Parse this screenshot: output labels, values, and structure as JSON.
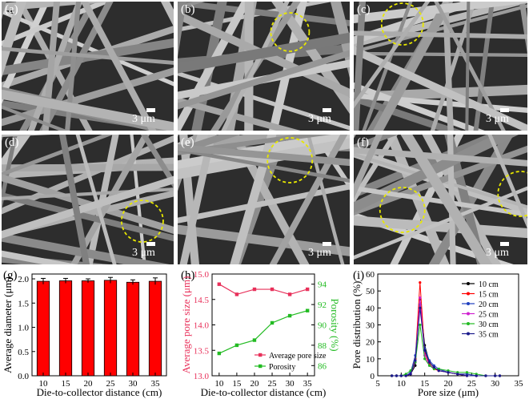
{
  "micrographs": [
    {
      "label": "(a)",
      "scale": "3 μm",
      "circles": 0
    },
    {
      "label": "(b)",
      "scale": "3 μm",
      "circles": 1
    },
    {
      "label": "(c)",
      "scale": "3 μm",
      "circles": 1
    },
    {
      "label": "(d)",
      "scale": "3 μm",
      "circles": 1
    },
    {
      "label": "(e)",
      "scale": "3 μm",
      "circles": 1
    },
    {
      "label": "(f)",
      "scale": "3 μm",
      "circles": 2
    }
  ],
  "colors": {
    "bar": "#ff0000",
    "pore_line": "#e8305a",
    "porosity_line": "#22bb22",
    "circle": "#e8e800"
  },
  "chart_data": [
    {
      "type": "bar",
      "panel_label": "(g)",
      "categories": [
        "10",
        "15",
        "20",
        "25",
        "30",
        "35"
      ],
      "values": [
        1.95,
        1.96,
        1.96,
        1.97,
        1.93,
        1.95
      ],
      "errors": [
        0.06,
        0.05,
        0.04,
        0.06,
        0.05,
        0.07
      ],
      "xlabel": "Die-to-collector distance (cm)",
      "ylabel": "Average diameter (μm)",
      "ylim": [
        0.0,
        2.1
      ],
      "yticks": [
        "0.0",
        "0.5",
        "1.0",
        "1.5",
        "2.0"
      ]
    },
    {
      "type": "line",
      "panel_label": "(h)",
      "x": [
        10,
        15,
        20,
        25,
        30,
        35
      ],
      "xticks": [
        "10",
        "15",
        "20",
        "25",
        "30",
        "35"
      ],
      "series": [
        {
          "name": "Average pore size",
          "axis": "left",
          "values": [
            14.8,
            14.6,
            14.7,
            14.7,
            14.6,
            14.7
          ]
        },
        {
          "name": "Porosity",
          "axis": "right",
          "values": [
            87.2,
            88.0,
            88.5,
            90.2,
            90.9,
            91.4
          ]
        }
      ],
      "xlabel": "Die-to-collector distance (cm)",
      "ylabel_left": "Average pore size (μm)",
      "ylabel_right": "Porosity (%)",
      "ylim_left": [
        13.0,
        15.0
      ],
      "yticks_left": [
        "13.0",
        "13.5",
        "14.0",
        "14.5",
        "15.0"
      ],
      "ylim_right": [
        85,
        95
      ],
      "yticks_right": [
        "86",
        "88",
        "90",
        "92",
        "94"
      ],
      "legend": "bottom-right"
    },
    {
      "type": "line",
      "panel_label": "(i)",
      "x": [
        8,
        9,
        10,
        11,
        12,
        13,
        14,
        15,
        16,
        17,
        18,
        20,
        22,
        24,
        26,
        28,
        30,
        31
      ],
      "xticks": [
        "5",
        "10",
        "15",
        "20",
        "25",
        "30",
        "35"
      ],
      "series": [
        {
          "name": "10 cm",
          "color": "#000000",
          "values": [
            0,
            0,
            0,
            0,
            1,
            6,
            45,
            18,
            8,
            5,
            3,
            2,
            1,
            1,
            0,
            0,
            0,
            0
          ]
        },
        {
          "name": "15 cm",
          "color": "#ff0000",
          "values": [
            0,
            0,
            0,
            0,
            1,
            10,
            55,
            14,
            7,
            4,
            3,
            2,
            1,
            0,
            0,
            0,
            0,
            0
          ]
        },
        {
          "name": "20 cm",
          "color": "#1f3fbf",
          "values": [
            0,
            0,
            0,
            0,
            2,
            12,
            42,
            16,
            9,
            6,
            4,
            2,
            1,
            1,
            0,
            0,
            0,
            0
          ]
        },
        {
          "name": "25 cm",
          "color": "#d020d0",
          "values": [
            0,
            0,
            0,
            0,
            1,
            8,
            46,
            12,
            6,
            5,
            3,
            2,
            1,
            0,
            0,
            0,
            0,
            0
          ]
        },
        {
          "name": "30 cm",
          "color": "#22bb22",
          "values": [
            0,
            0,
            0,
            1,
            3,
            8,
            30,
            10,
            6,
            4,
            4,
            3,
            2,
            2,
            1,
            0,
            0,
            0
          ]
        },
        {
          "name": "35 cm",
          "color": "#1a1a8c",
          "values": [
            0,
            0,
            0,
            0,
            1,
            9,
            40,
            15,
            8,
            5,
            3,
            2,
            1,
            0,
            0,
            0,
            0,
            0
          ]
        }
      ],
      "xlabel": "Pore size (μm)",
      "ylabel": "Pore distribution (%)",
      "xlim": [
        5,
        35
      ],
      "ylim": [
        0,
        60
      ],
      "yticks": [
        "0",
        "10",
        "20",
        "30",
        "40",
        "50",
        "60"
      ],
      "legend": "top-right"
    }
  ]
}
